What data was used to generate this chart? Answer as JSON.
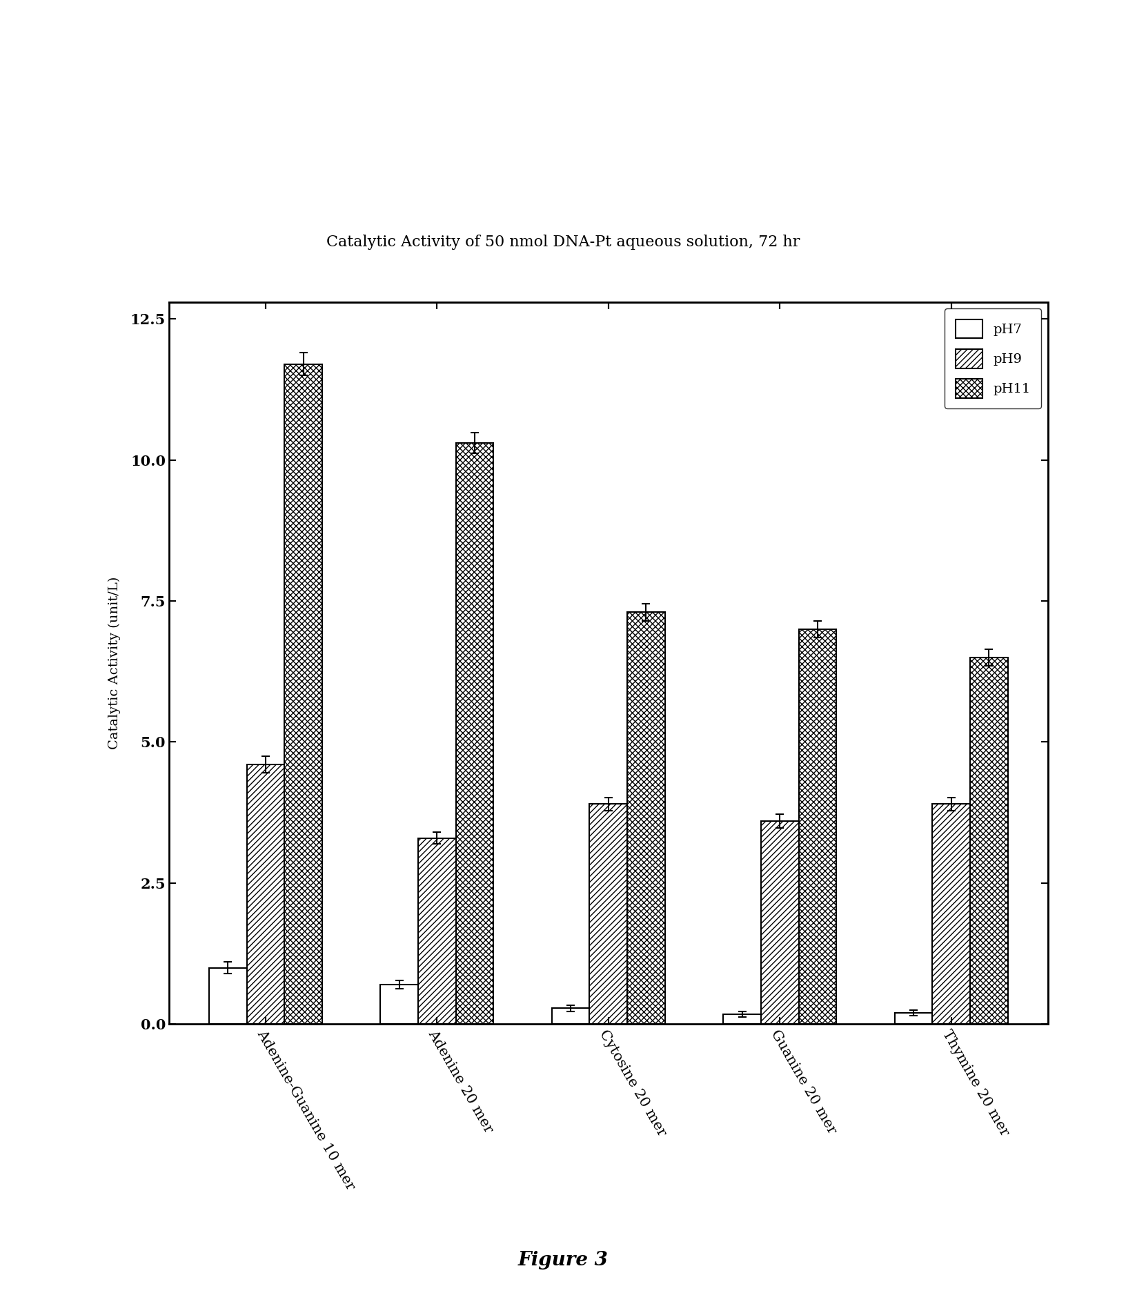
{
  "title": "Catalytic Activity of 50 nmol DNA-Pt aqueous solution, 72 hr",
  "ylabel": "Catalytic Activity (unit/L)",
  "categories": [
    "Adenine-Guanine 10 mer",
    "Adenine 20 mer",
    "Cytosine 20 mer",
    "Guanine 20 mer",
    "Thymine 20 mer"
  ],
  "ph7_values": [
    1.0,
    0.7,
    0.28,
    0.18,
    0.2
  ],
  "ph9_values": [
    4.6,
    3.3,
    3.9,
    3.6,
    3.9
  ],
  "ph11_values": [
    11.7,
    10.3,
    7.3,
    7.0,
    6.5
  ],
  "ph7_errors": [
    0.1,
    0.07,
    0.05,
    0.05,
    0.05
  ],
  "ph9_errors": [
    0.15,
    0.1,
    0.12,
    0.12,
    0.12
  ],
  "ph11_errors": [
    0.2,
    0.18,
    0.15,
    0.15,
    0.15
  ],
  "ylim": [
    0,
    12.8
  ],
  "yticks": [
    0.0,
    2.5,
    5.0,
    7.5,
    10.0,
    12.5
  ],
  "legend_labels": [
    "pH7",
    "pH9",
    "pH11"
  ],
  "bar_width": 0.22,
  "figure_caption": "Figure 3",
  "background_color": "#ffffff",
  "title_fontsize": 16,
  "axis_fontsize": 14,
  "tick_fontsize": 15,
  "legend_fontsize": 14,
  "caption_fontsize": 20
}
